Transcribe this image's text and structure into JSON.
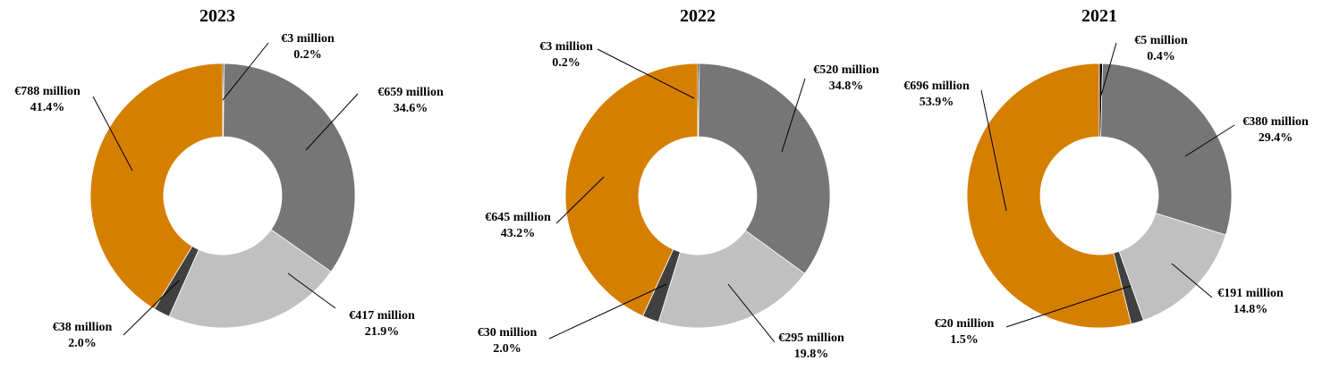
{
  "chart_data": [
    {
      "type": "donut",
      "title": "2023",
      "colors": [
        "#000000",
        "#767676",
        "#c0c0c0",
        "#404040",
        "#d57f00"
      ],
      "slices": [
        {
          "value": 3,
          "label": "€3 million",
          "pct": "0.2%"
        },
        {
          "value": 659,
          "label": "€659 million",
          "pct": "34.6%"
        },
        {
          "value": 417,
          "label": "€417 million",
          "pct": "21.9%"
        },
        {
          "value": 38,
          "label": "€38 million",
          "pct": "2.0%"
        },
        {
          "value": 788,
          "label": "€788 million",
          "pct": "41.4%"
        }
      ]
    },
    {
      "type": "donut",
      "title": "2022",
      "colors": [
        "#000000",
        "#767676",
        "#c0c0c0",
        "#404040",
        "#d57f00"
      ],
      "slices": [
        {
          "value": 3,
          "label": "€3 million",
          "pct": "0.2%"
        },
        {
          "value": 520,
          "label": "€520 million",
          "pct": "34.8%"
        },
        {
          "value": 295,
          "label": "€295 million",
          "pct": "19.8%"
        },
        {
          "value": 30,
          "label": "€30 million",
          "pct": "2.0%"
        },
        {
          "value": 645,
          "label": "€645 million",
          "pct": "43.2%"
        }
      ]
    },
    {
      "type": "donut",
      "title": "2021",
      "colors": [
        "#000000",
        "#767676",
        "#c0c0c0",
        "#404040",
        "#d57f00"
      ],
      "slices": [
        {
          "value": 5,
          "label": "€5 million",
          "pct": "0.4%"
        },
        {
          "value": 380,
          "label": "€380 million",
          "pct": "29.4%"
        },
        {
          "value": 191,
          "label": "€191 million",
          "pct": "14.8%"
        },
        {
          "value": 20,
          "label": "€20 million",
          "pct": "1.5%"
        },
        {
          "value": 696,
          "label": "€696 million",
          "pct": "53.9%"
        }
      ]
    }
  ]
}
